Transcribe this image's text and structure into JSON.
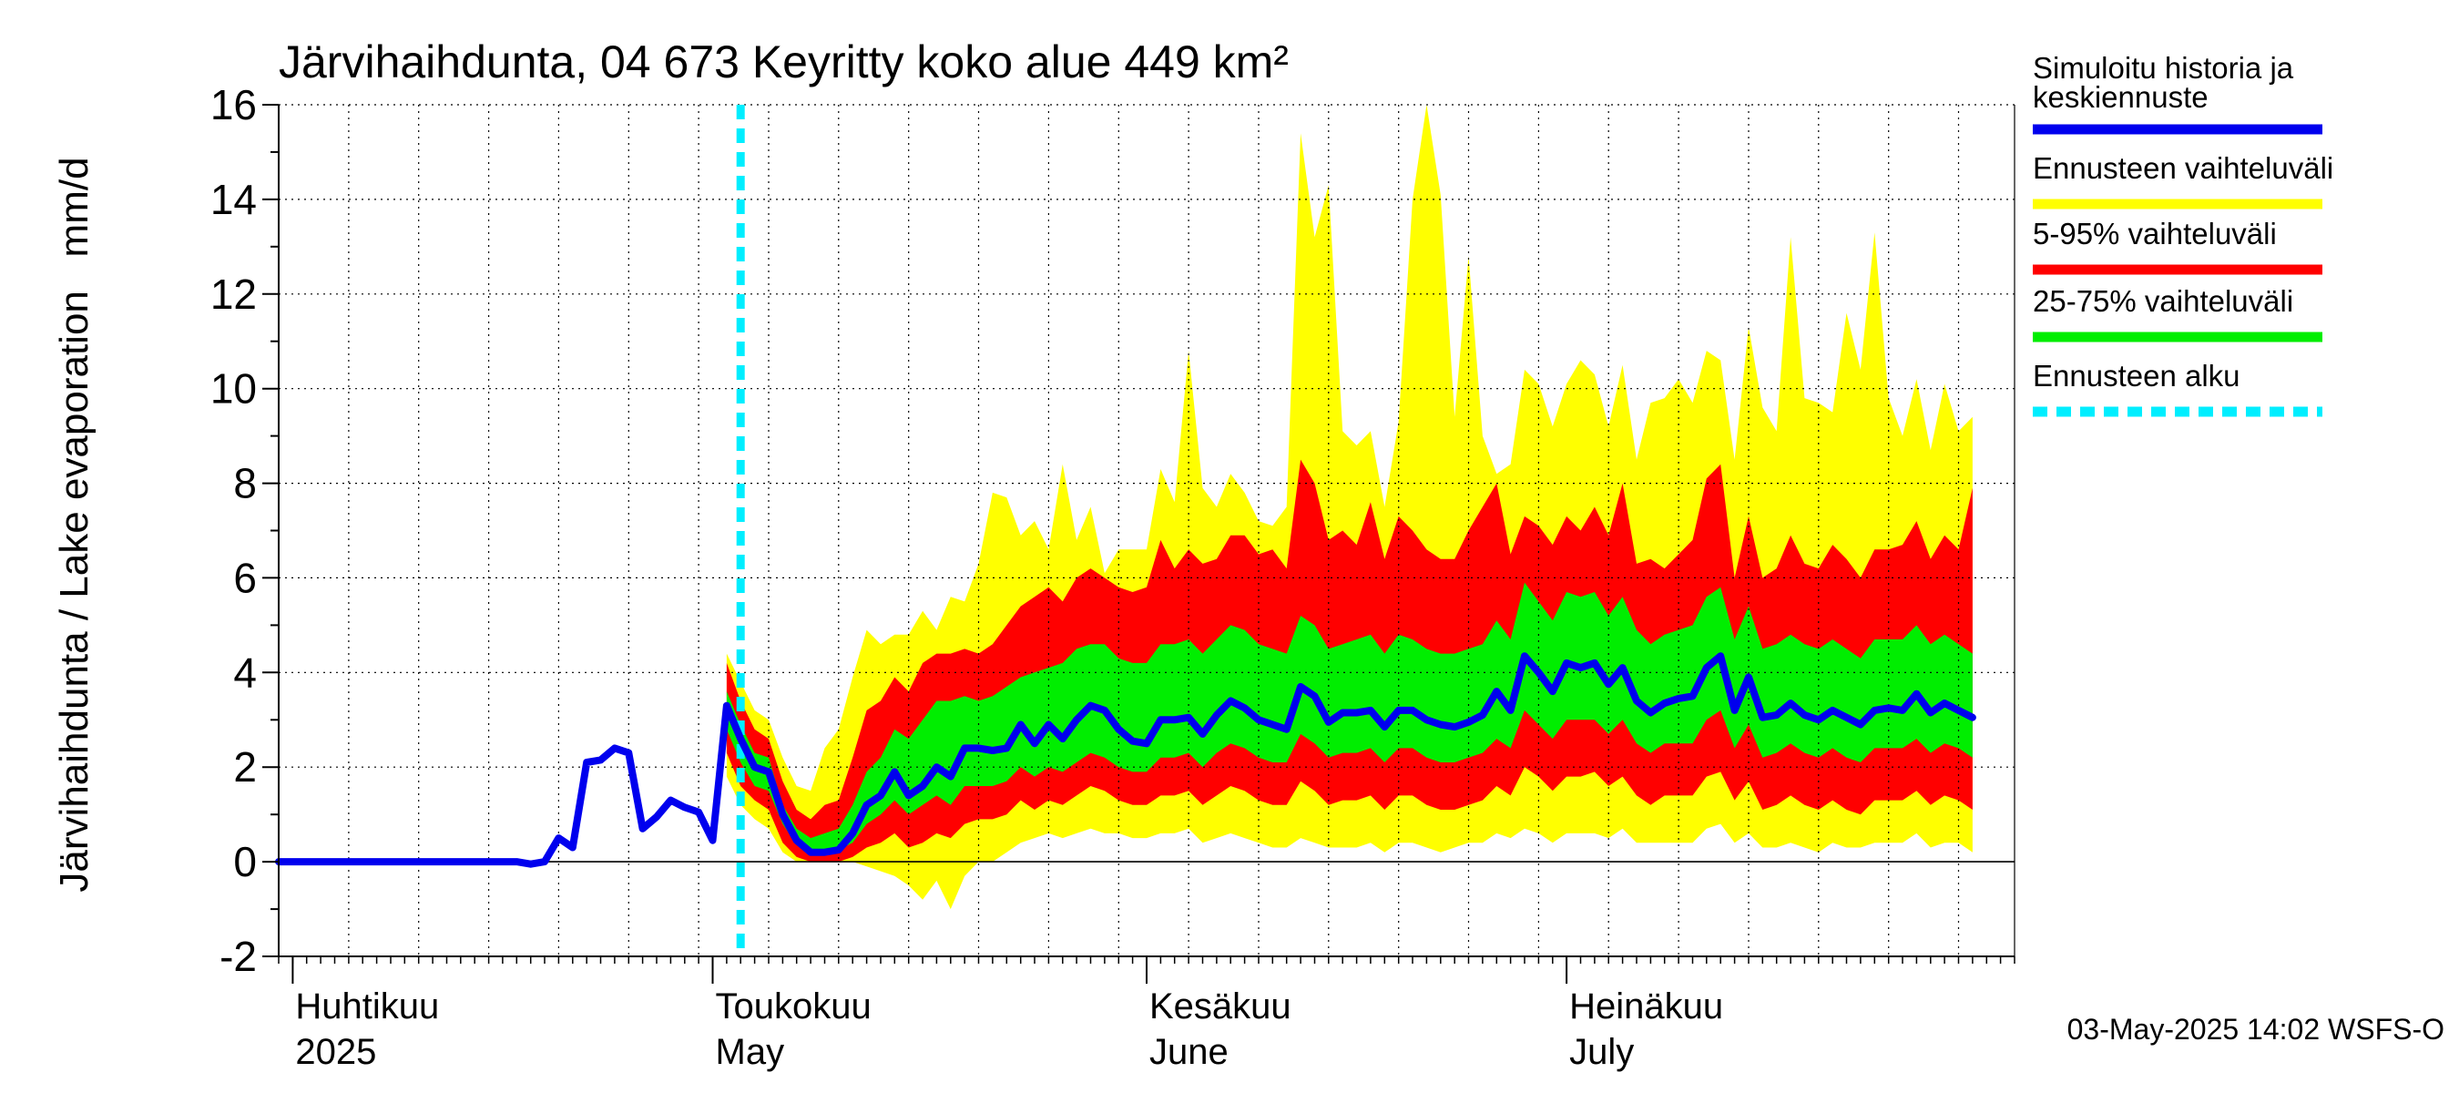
{
  "chart_data": {
    "type": "area",
    "title": "Järvihaihdunta, 04 673 Keyritty koko alue 449 km²",
    "ylabel": "Järvihaihdunta / Lake evaporation   mm/d",
    "ylim": [
      -2,
      16
    ],
    "yticks": [
      "-2",
      "0",
      "2",
      "4",
      "6",
      "8",
      "10",
      "12",
      "14",
      "16"
    ],
    "x_range": [
      "2025-03-31",
      "2025-08-02"
    ],
    "forecast_start": "2025-05-03",
    "months": [
      {
        "date": "2025-04-01",
        "fi": "Huhtikuu",
        "en": "2025"
      },
      {
        "date": "2025-05-01",
        "fi": "Toukokuu",
        "en": "May"
      },
      {
        "date": "2025-06-01",
        "fi": "Kesäkuu",
        "en": "June"
      },
      {
        "date": "2025-07-01",
        "fi": "Heinäkuu",
        "en": "July"
      }
    ],
    "legend": [
      {
        "label_line1": "Simuloitu historia ja",
        "label_line2": "keskiennuste",
        "color": "#0000ee",
        "style": "solid"
      },
      {
        "label_line1": "Ennusteen vaihteluväli",
        "label_line2": "",
        "color": "#ffff00",
        "style": "solid"
      },
      {
        "label_line1": "5-95% vaihteluväli",
        "label_line2": "",
        "color": "#ff0000",
        "style": "solid"
      },
      {
        "label_line1": "25-75% vaihteluväli",
        "label_line2": "",
        "color": "#00ee00",
        "style": "solid"
      },
      {
        "label_line1": "Ennusteen alku",
        "label_line2": "",
        "color": "#00eeff",
        "style": "dashed"
      }
    ],
    "footer": "03-May-2025 14:02 WSFS-O",
    "history": {
      "start": "2025-03-31",
      "values": [
        0,
        0,
        0,
        0,
        0,
        0,
        0,
        0,
        0,
        0,
        0,
        0,
        0,
        0,
        0,
        0,
        0,
        0,
        -0.05,
        0,
        0.5,
        0.3,
        2.1,
        2.15,
        2.4,
        2.3,
        0.7,
        0.95,
        1.3,
        1.15,
        1.05,
        0.45,
        3.3
      ]
    },
    "forecast": {
      "start": "2025-05-02",
      "median": [
        3.3,
        2.6,
        2.0,
        1.9,
        1.0,
        0.45,
        0.2,
        0.2,
        0.25,
        0.6,
        1.2,
        1.4,
        1.9,
        1.4,
        1.6,
        2.0,
        1.8,
        2.4,
        2.4,
        2.35,
        2.4,
        2.9,
        2.5,
        2.9,
        2.6,
        3.0,
        3.3,
        3.2,
        2.8,
        2.55,
        2.5,
        3.0,
        3.0,
        3.05,
        2.7,
        3.1,
        3.4,
        3.25,
        3.0,
        2.9,
        2.8,
        3.7,
        3.5,
        2.95,
        3.15,
        3.15,
        3.2,
        2.85,
        3.2,
        3.2,
        3.0,
        2.9,
        2.85,
        2.95,
        3.1,
        3.6,
        3.2,
        4.35,
        4.0,
        3.6,
        4.2,
        4.1,
        4.2,
        3.75,
        4.1,
        3.4,
        3.15,
        3.35,
        3.45,
        3.5,
        4.1,
        4.35,
        3.2,
        3.9,
        3.05,
        3.1,
        3.35,
        3.1,
        3.0,
        3.2,
        3.05,
        2.9,
        3.2,
        3.25,
        3.2,
        3.55,
        3.15,
        3.35,
        3.2,
        3.05
      ],
      "p25": [
        2.8,
        2.1,
        1.6,
        1.5,
        0.8,
        0.35,
        0.2,
        0.2,
        0.25,
        0.4,
        0.8,
        1.0,
        1.3,
        1.0,
        1.2,
        1.4,
        1.2,
        1.6,
        1.6,
        1.6,
        1.7,
        2.0,
        1.8,
        2.0,
        1.9,
        2.1,
        2.3,
        2.2,
        2.0,
        1.9,
        1.9,
        2.2,
        2.2,
        2.3,
        2.0,
        2.3,
        2.5,
        2.4,
        2.2,
        2.1,
        2.1,
        2.7,
        2.5,
        2.2,
        2.3,
        2.3,
        2.4,
        2.1,
        2.4,
        2.4,
        2.2,
        2.1,
        2.1,
        2.2,
        2.3,
        2.6,
        2.4,
        3.2,
        2.9,
        2.6,
        3.0,
        3.0,
        3.0,
        2.7,
        3.0,
        2.5,
        2.3,
        2.5,
        2.5,
        2.5,
        3.0,
        3.2,
        2.4,
        2.9,
        2.2,
        2.3,
        2.5,
        2.3,
        2.2,
        2.4,
        2.2,
        2.1,
        2.4,
        2.4,
        2.4,
        2.6,
        2.3,
        2.5,
        2.4,
        2.2
      ],
      "p75": [
        3.6,
        2.9,
        2.3,
        2.2,
        1.2,
        0.7,
        0.5,
        0.6,
        0.7,
        1.2,
        1.9,
        2.2,
        2.8,
        2.6,
        3.0,
        3.4,
        3.4,
        3.5,
        3.4,
        3.5,
        3.7,
        3.9,
        4.0,
        4.1,
        4.2,
        4.5,
        4.6,
        4.6,
        4.3,
        4.2,
        4.2,
        4.6,
        4.6,
        4.7,
        4.4,
        4.7,
        5.0,
        4.9,
        4.6,
        4.5,
        4.4,
        5.2,
        5.0,
        4.5,
        4.6,
        4.7,
        4.8,
        4.4,
        4.8,
        4.7,
        4.5,
        4.4,
        4.4,
        4.5,
        4.6,
        5.1,
        4.7,
        5.9,
        5.5,
        5.1,
        5.7,
        5.6,
        5.7,
        5.2,
        5.6,
        4.9,
        4.6,
        4.8,
        4.9,
        5.0,
        5.6,
        5.8,
        4.7,
        5.4,
        4.5,
        4.6,
        4.8,
        4.6,
        4.5,
        4.7,
        4.5,
        4.3,
        4.7,
        4.7,
        4.7,
        5.0,
        4.6,
        4.8,
        4.6,
        4.4
      ],
      "p5": [
        2.3,
        1.6,
        1.3,
        1.1,
        0.4,
        0.1,
        0.0,
        0.0,
        0.0,
        0.1,
        0.3,
        0.4,
        0.6,
        0.3,
        0.4,
        0.6,
        0.5,
        0.8,
        0.9,
        0.9,
        1.0,
        1.3,
        1.1,
        1.3,
        1.2,
        1.4,
        1.6,
        1.5,
        1.3,
        1.2,
        1.2,
        1.4,
        1.4,
        1.5,
        1.2,
        1.4,
        1.6,
        1.5,
        1.3,
        1.2,
        1.2,
        1.7,
        1.5,
        1.2,
        1.3,
        1.3,
        1.4,
        1.1,
        1.4,
        1.4,
        1.2,
        1.1,
        1.1,
        1.2,
        1.3,
        1.6,
        1.4,
        2.0,
        1.8,
        1.5,
        1.8,
        1.8,
        1.9,
        1.6,
        1.8,
        1.4,
        1.2,
        1.4,
        1.4,
        1.4,
        1.8,
        1.9,
        1.3,
        1.7,
        1.1,
        1.2,
        1.4,
        1.2,
        1.1,
        1.3,
        1.1,
        1.0,
        1.3,
        1.3,
        1.3,
        1.5,
        1.2,
        1.4,
        1.3,
        1.1
      ],
      "p95": [
        4.2,
        3.4,
        2.8,
        2.6,
        1.7,
        1.1,
        0.9,
        1.2,
        1.3,
        2.2,
        3.2,
        3.4,
        3.9,
        3.6,
        4.2,
        4.4,
        4.4,
        4.5,
        4.4,
        4.6,
        5.0,
        5.4,
        5.6,
        5.8,
        5.5,
        6.0,
        6.2,
        6.0,
        5.8,
        5.7,
        5.8,
        6.8,
        6.2,
        6.6,
        6.3,
        6.4,
        6.9,
        6.9,
        6.5,
        6.6,
        6.2,
        8.5,
        8.0,
        6.8,
        7.0,
        6.7,
        7.6,
        6.4,
        7.3,
        7.0,
        6.6,
        6.4,
        6.4,
        7.0,
        7.5,
        8.0,
        6.5,
        7.3,
        7.1,
        6.7,
        7.3,
        7.0,
        7.5,
        6.9,
        8.0,
        6.3,
        6.4,
        6.2,
        6.5,
        6.8,
        8.1,
        8.4,
        6.0,
        7.3,
        6.0,
        6.2,
        6.9,
        6.3,
        6.2,
        6.7,
        6.4,
        6.0,
        6.6,
        6.6,
        6.7,
        7.2,
        6.4,
        6.9,
        6.6,
        7.9
      ],
      "min": [
        1.8,
        1.2,
        0.9,
        0.7,
        0.2,
        0.0,
        0.0,
        0.0,
        0.0,
        0.0,
        -0.1,
        -0.2,
        -0.3,
        -0.5,
        -0.8,
        -0.4,
        -1.0,
        -0.3,
        0.0,
        0.0,
        0.2,
        0.4,
        0.5,
        0.6,
        0.5,
        0.6,
        0.7,
        0.6,
        0.6,
        0.5,
        0.5,
        0.6,
        0.6,
        0.7,
        0.4,
        0.5,
        0.6,
        0.5,
        0.4,
        0.3,
        0.3,
        0.5,
        0.4,
        0.3,
        0.3,
        0.3,
        0.4,
        0.2,
        0.4,
        0.4,
        0.3,
        0.2,
        0.3,
        0.4,
        0.4,
        0.6,
        0.5,
        0.7,
        0.6,
        0.4,
        0.6,
        0.6,
        0.6,
        0.5,
        0.7,
        0.4,
        0.4,
        0.4,
        0.4,
        0.4,
        0.7,
        0.8,
        0.4,
        0.6,
        0.3,
        0.3,
        0.4,
        0.3,
        0.2,
        0.4,
        0.3,
        0.3,
        0.4,
        0.4,
        0.4,
        0.6,
        0.3,
        0.4,
        0.4,
        0.2
      ],
      "max": [
        4.4,
        3.8,
        3.2,
        3.0,
        2.2,
        1.6,
        1.5,
        2.4,
        2.8,
        3.9,
        4.9,
        4.6,
        4.8,
        4.8,
        5.3,
        4.9,
        5.6,
        5.5,
        6.3,
        7.8,
        7.7,
        6.9,
        7.2,
        6.6,
        8.4,
        6.8,
        7.5,
        6.1,
        6.6,
        6.6,
        6.6,
        8.3,
        7.6,
        10.8,
        7.9,
        7.5,
        8.2,
        7.8,
        7.2,
        7.1,
        7.5,
        15.4,
        13.2,
        14.3,
        9.1,
        8.8,
        9.1,
        7.5,
        9.3,
        14.0,
        16.0,
        14.1,
        9.4,
        12.8,
        9.0,
        8.2,
        8.4,
        10.4,
        10.1,
        9.2,
        10.1,
        10.6,
        10.3,
        9.2,
        10.5,
        8.5,
        9.7,
        9.8,
        10.2,
        9.7,
        10.8,
        10.6,
        8.5,
        11.3,
        9.6,
        9.1,
        13.2,
        9.8,
        9.7,
        9.5,
        11.6,
        10.4,
        13.3,
        9.8,
        9.0,
        10.2,
        8.7,
        10.1,
        9.1,
        9.4
      ]
    }
  }
}
